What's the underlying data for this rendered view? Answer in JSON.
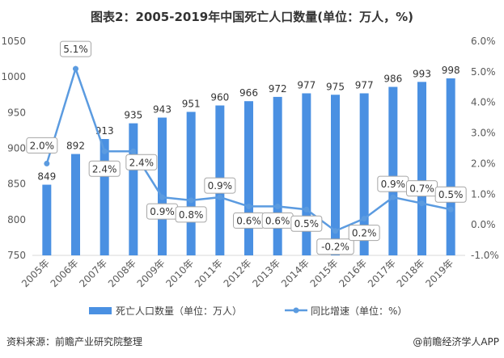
{
  "title": "图表2：2005-2019年中国死亡人口数量(单位：万人，%)",
  "source": "资料来源：前瞻产业研究院整理",
  "credit": "@前瞻经济学人APP",
  "chart_data": {
    "type": "bar+line",
    "categories": [
      "2005年",
      "2006年",
      "2007年",
      "2008年",
      "2009年",
      "2010年",
      "2011年",
      "2012年",
      "2013年",
      "2014年",
      "2015年",
      "2016年",
      "2017年",
      "2018年",
      "2019年"
    ],
    "series": [
      {
        "name": "死亡人口数量（单位：万人）",
        "type": "bar",
        "axis": "left",
        "color": "#4A90E2",
        "values": [
          849,
          892,
          913,
          935,
          943,
          951,
          960,
          966,
          972,
          977,
          975,
          977,
          986,
          993,
          998
        ],
        "labels": [
          "849",
          "892",
          "913",
          "935",
          "943",
          "951",
          "960",
          "966",
          "972",
          "977",
          "975",
          "977",
          "986",
          "993",
          "998"
        ]
      },
      {
        "name": "同比增速（单位：%）",
        "type": "line",
        "axis": "right",
        "color": "#5B9BE0",
        "values": [
          2.0,
          5.1,
          2.4,
          2.4,
          0.9,
          0.8,
          0.9,
          0.6,
          0.6,
          0.5,
          -0.2,
          0.2,
          0.9,
          0.7,
          0.5
        ],
        "labels": [
          "2.0%",
          "5.1%",
          "2.4%",
          "2.4%",
          "0.9%",
          "0.8%",
          "0.9%",
          "0.6%",
          "0.6%",
          "0.5%",
          "-0.2%",
          "0.2%",
          "0.9%",
          "0.7%",
          "0.5%"
        ]
      }
    ],
    "left_axis": {
      "range": [
        750,
        1050
      ],
      "ticks": [
        "750",
        "800",
        "850",
        "900",
        "950",
        "1000",
        "1050"
      ]
    },
    "right_axis": {
      "range": [
        -1.0,
        6.0
      ],
      "ticks": [
        "-1.0%",
        "0.0%",
        "1.0%",
        "2.0%",
        "3.0%",
        "4.0%",
        "5.0%",
        "6.0%"
      ]
    },
    "grid": false,
    "legend": "bottom"
  }
}
